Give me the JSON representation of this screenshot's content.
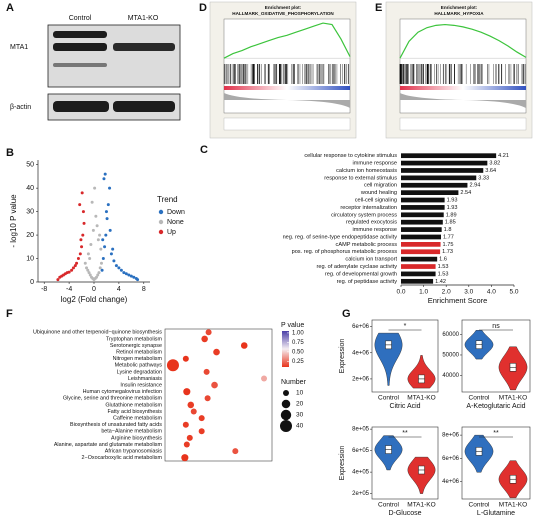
{
  "panel_labels": [
    "A",
    "B",
    "C",
    "D",
    "E",
    "F",
    "G"
  ],
  "blot": {
    "lanes": [
      "Control",
      "MTA1-KO"
    ],
    "rows": [
      "MTA1",
      "β-actin"
    ]
  },
  "gsea": [
    {
      "title": "Enrichment plot:",
      "subtitle": "HALLMARK_OXIDATIVE_PHOSPHORYLATION",
      "color": "#3cc43c",
      "ylim": [
        -0.05,
        0.5
      ],
      "es": [
        0,
        0.06,
        0.1,
        0.15,
        0.19,
        0.23,
        0.27,
        0.3,
        0.34,
        0.38,
        0.42,
        0.46,
        0.44,
        0.25,
        0.02
      ]
    },
    {
      "title": "Enrichment plot:",
      "subtitle": "HALLMARK_HYPOXIA",
      "color": "#3cc43c",
      "ylim": [
        -0.05,
        0.5
      ],
      "es": [
        0,
        0.22,
        0.34,
        0.4,
        0.43,
        0.44,
        0.43,
        0.41,
        0.38,
        0.34,
        0.29,
        0.23,
        0.16,
        0.08,
        0.01
      ]
    }
  ],
  "chart_data": [
    {
      "type": "scatter",
      "xlabel": "log2 (Fold change)",
      "ylabel": "- log10 P value",
      "legend_title": "Trend",
      "xlim": [
        -9,
        9
      ],
      "xticks": [
        -8,
        -4,
        0,
        4,
        8
      ],
      "ylim": [
        0,
        52
      ],
      "yticks": [
        0,
        10,
        20,
        30,
        40,
        50
      ],
      "series": [
        {
          "name": "Down",
          "color": "#2a70c0",
          "x": [
            1.3,
            1.5,
            1.7,
            1.9,
            2.1,
            2.3,
            2.5,
            1.6,
            2.0,
            1.4,
            2.8,
            3.2,
            3.6,
            4.0,
            4.4,
            4.8,
            5.2,
            5.6,
            6.0,
            6.4,
            6.8,
            7.0,
            3.0,
            2.6,
            1.8
          ],
          "values": [
            5,
            10,
            15,
            20,
            27,
            33,
            40,
            44,
            30,
            18,
            12,
            9,
            7,
            6,
            5,
            4,
            3.5,
            3,
            2.5,
            2,
            1.5,
            1,
            14,
            22,
            46
          ]
        },
        {
          "name": "None",
          "color": "#b8b8b8",
          "x": [
            -1.4,
            -1.2,
            -1.0,
            -0.8,
            -0.6,
            -0.4,
            -0.2,
            0,
            0.2,
            0.4,
            0.6,
            0.8,
            1.0,
            1.2,
            -0.9,
            -0.5,
            -0.1,
            0.3,
            0.7,
            1.1,
            -0.3,
            0.1,
            0.5,
            -0.7,
            0.9
          ],
          "values": [
            8,
            6,
            5,
            4,
            3,
            2,
            1.5,
            1,
            1.5,
            2,
            3,
            4,
            6,
            8,
            12,
            16,
            22,
            28,
            18,
            14,
            34,
            40,
            24,
            10,
            20
          ]
        },
        {
          "name": "Up",
          "color": "#d8282a",
          "x": [
            -5.8,
            -5.5,
            -5.2,
            -4.9,
            -4.6,
            -4.3,
            -4.0,
            -3.6,
            -3.3,
            -3.0,
            -2.8,
            -2.5,
            -2.2,
            -2.0,
            -1.8,
            -1.6,
            -2.3,
            -1.9,
            -2.1,
            -1.7
          ],
          "values": [
            1,
            2,
            2.5,
            3,
            3.5,
            4,
            4.2,
            5,
            6,
            7,
            8,
            10,
            12,
            15,
            20,
            25,
            33,
            38,
            18,
            30
          ]
        }
      ]
    },
    {
      "type": "hbar",
      "xlabel": "Enrichment Score",
      "xlim": [
        0,
        5
      ],
      "xticks": [
        {
          "value": 0,
          "label": "0.0"
        },
        {
          "value": 1,
          "label": "1.0"
        },
        {
          "value": 2,
          "label": "2.0"
        },
        {
          "value": 3,
          "label": "3.0"
        },
        {
          "value": 4,
          "label": "4.0"
        },
        {
          "value": 5,
          "label": "5.0"
        }
      ],
      "categories": [
        "cellular response to cytokine stimulus",
        "immune response",
        "calcium ion homeostasis",
        "response to external stimulus",
        "cell migration",
        "wound healing",
        "cell-cell signaling",
        "receptor internalization",
        "circulatory system process",
        "regulated exocytosis",
        "immune response",
        "neg. reg. of serine-type endopeptidase activity",
        "cAMP metabolic process",
        "pos. reg. of phosphorus metabolic process",
        "calcium ion transport",
        "reg. of adenylate cyclase activity",
        "reg. of developmental growth",
        "reg. of peptidase activity"
      ],
      "values": [
        4.21,
        3.82,
        3.64,
        3.33,
        2.94,
        2.54,
        1.93,
        1.93,
        1.89,
        1.85,
        1.8,
        1.77,
        1.75,
        1.73,
        1.6,
        1.53,
        1.53,
        1.42
      ],
      "colors": [
        "#111",
        "#111",
        "#111",
        "#111",
        "#111",
        "#111",
        "#111",
        "#111",
        "#111",
        "#111",
        "#111",
        "#111",
        "#d8282a",
        "#d8282a",
        "#111",
        "#d8282a",
        "#111",
        "#111"
      ]
    },
    {
      "type": "dot",
      "xlim": [
        0,
        1
      ],
      "size_title": "Number",
      "color_title": "P value",
      "color_scale": [
        "#e8341c",
        "#f5eef2",
        "#4a3fa8"
      ],
      "color_range": [
        0.1,
        1.05
      ],
      "color_ticks": [
        {
          "value": 1,
          "label": "1.00"
        },
        {
          "value": 0.75,
          "label": "0.75"
        },
        {
          "value": 0.5,
          "label": "0.50"
        },
        {
          "value": 0.25,
          "label": "0.25"
        }
      ],
      "size_ticks": [
        10,
        20,
        30,
        40
      ],
      "categories": [
        "Ubiquinone and other terpenoid−quinone biosynthesis",
        "Tryptophan metabolism",
        "Serotonergic synapse",
        "Retinol metabolism",
        "Nitrogen metabolism",
        "Metabolic pathways",
        "Lysine degradation",
        "Leishmaniasis",
        "Insulin resistance",
        "Human cytomegalovirus infection",
        "Glycine, serine and threonine metabolism",
        "Glutathione metabolism",
        "Fatty acid biosynthesis",
        "Caffeine metabolism",
        "Biosynthesis of unsaturated fatty acids",
        "beta−Alanine metabolism",
        "Arginine biosynthesis",
        "Alanine, aspartate and glutamate metabolism",
        "African trypanosomiasis",
        "2−Oxocarboxylic acid metabolism"
      ],
      "x": [
        0.4,
        0.36,
        0.76,
        0.48,
        0.17,
        0.04,
        0.38,
        0.96,
        0.46,
        0.18,
        0.39,
        0.22,
        0.25,
        0.33,
        0.17,
        0.33,
        0.21,
        0.18,
        0.67,
        0.16
      ],
      "pvalues": [
        0.15,
        0.12,
        0.1,
        0.12,
        0.08,
        0.02,
        0.15,
        0.4,
        0.18,
        0.1,
        0.15,
        0.12,
        0.15,
        0.12,
        0.12,
        0.12,
        0.12,
        0.12,
        0.18,
        0.08
      ],
      "sizes": [
        10,
        12,
        12,
        12,
        10,
        40,
        10,
        10,
        12,
        14,
        10,
        12,
        10,
        10,
        10,
        10,
        10,
        10,
        10,
        14
      ]
    },
    {
      "type": "violin",
      "title": "Citric Acid",
      "ylabel": "Expression",
      "signif": "*",
      "ylim": [
        1000000,
        6500000
      ],
      "yticks": [
        {
          "value": 2000000,
          "label": "2e+06"
        },
        {
          "value": 4000000,
          "label": "4e+06"
        },
        {
          "value": 6000000,
          "label": "6e+06"
        }
      ],
      "groups": [
        {
          "name": "Control",
          "color": "#2f6fbe",
          "min": 1500000,
          "median": 4600000,
          "max": 5500000
        },
        {
          "name": "MTA1-KO",
          "color": "#e0302e",
          "min": 1300000,
          "median": 2000000,
          "max": 3800000
        }
      ]
    },
    {
      "type": "violin",
      "title": "A-Ketoglutaric Acid",
      "signif": "ns",
      "ylim": [
        32000,
        67000
      ],
      "yticks": [
        40000,
        50000,
        60000
      ],
      "groups": [
        {
          "name": "Control",
          "color": "#2f6fbe",
          "min": 48000,
          "median": 55000,
          "max": 62000
        },
        {
          "name": "MTA1-KO",
          "color": "#e0302e",
          "min": 33000,
          "median": 44000,
          "max": 54000
        }
      ]
    },
    {
      "type": "violin",
      "title": "D-Glucose",
      "ylabel": "Expression",
      "signif": "**",
      "ylim": [
        150000,
        820000
      ],
      "yticks": [
        {
          "value": 200000,
          "label": "2e+05"
        },
        {
          "value": 400000,
          "label": "4e+05"
        },
        {
          "value": 600000,
          "label": "6e+05"
        },
        {
          "value": 800000,
          "label": "8e+05"
        }
      ],
      "groups": [
        {
          "name": "Control",
          "color": "#2f6fbe",
          "min": 420000,
          "median": 610000,
          "max": 740000
        },
        {
          "name": "MTA1-KO",
          "color": "#e0302e",
          "min": 200000,
          "median": 420000,
          "max": 540000
        }
      ]
    },
    {
      "type": "violin",
      "title": "L-Glutamine",
      "signif": "**",
      "ylim": [
        2500000,
        8700000
      ],
      "yticks": [
        {
          "value": 4000000,
          "label": "4e+06"
        },
        {
          "value": 6000000,
          "label": "6e+06"
        },
        {
          "value": 8000000,
          "label": "8e+06"
        }
      ],
      "groups": [
        {
          "name": "Control",
          "color": "#2f6fbe",
          "min": 4800000,
          "median": 6600000,
          "max": 8000000
        },
        {
          "name": "MTA1-KO",
          "color": "#e0302e",
          "min": 2600000,
          "median": 4200000,
          "max": 5800000
        }
      ]
    }
  ]
}
